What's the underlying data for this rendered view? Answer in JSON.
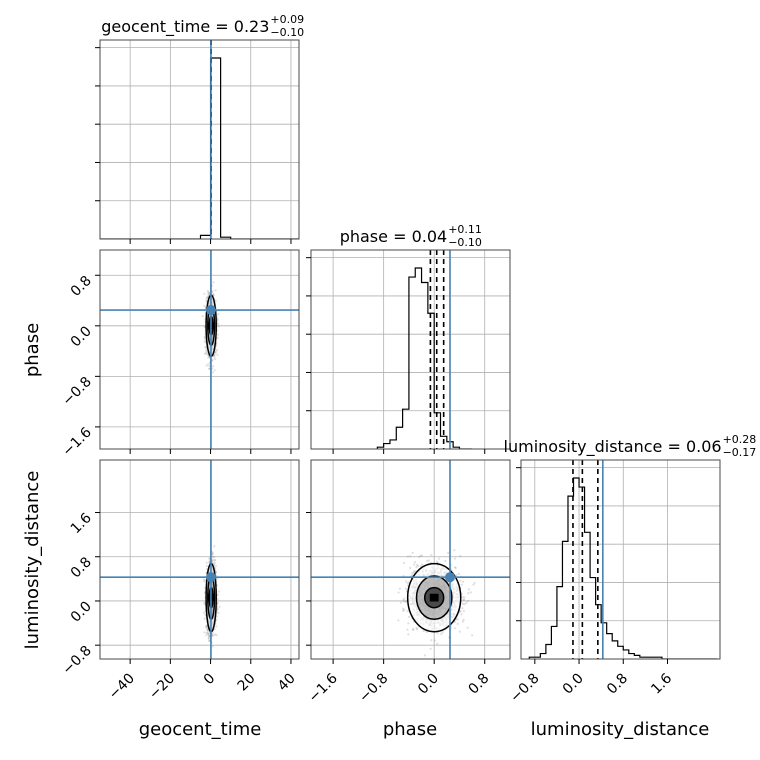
{
  "chart_data": {
    "type": "corner",
    "parameters": [
      "geocent_time",
      "phase",
      "luminosity_distance"
    ],
    "axis_labels": [
      "geocent_time",
      "phase",
      "luminosity_distance"
    ],
    "ranges": {
      "geocent_time": [
        -55,
        44
      ],
      "phase": [
        -1.95,
        1.2
      ],
      "luminosity_distance": [
        -1.05,
        2.55
      ]
    },
    "ticks": {
      "geocent_time": [
        -40,
        -20,
        0,
        20,
        40
      ],
      "phase": [
        -1.6,
        -0.8,
        0.0,
        0.8
      ],
      "luminosity_distance": [
        -0.8,
        0.0,
        0.8,
        1.6
      ]
    },
    "tick_labels": {
      "geocent_time": [
        "−40",
        "−20",
        "0",
        "20",
        "40"
      ],
      "phase": [
        "−1.6",
        "−0.8",
        "0.0",
        "0.8"
      ],
      "luminosity_distance": [
        "−0.8",
        "0.0",
        "0.8",
        "1.6"
      ]
    },
    "titles": [
      {
        "param": "geocent_time",
        "label": "geocent_time = 0.23",
        "plus": "+0.09",
        "minus": "−0.10"
      },
      {
        "param": "phase",
        "label": "phase = 0.04",
        "plus": "+0.11",
        "minus": "−0.10"
      },
      {
        "param": "luminosity_distance",
        "label": "luminosity_distance = 0.06",
        "plus": "+0.28",
        "minus": "−0.17"
      }
    ],
    "medians": {
      "geocent_time": 0.23,
      "phase": 0.04,
      "luminosity_distance": 0.06
    },
    "quantiles": {
      "geocent_time": [
        0.13,
        0.23,
        0.32
      ],
      "phase": [
        -0.06,
        0.04,
        0.15
      ],
      "luminosity_distance": [
        -0.11,
        0.06,
        0.34
      ]
    },
    "truths": {
      "geocent_time": 0.2,
      "phase": 0.25,
      "luminosity_distance": 0.43
    },
    "histograms": {
      "geocent_time": {
        "edges": [
          -55,
          -50,
          -45,
          -40,
          -35,
          -30,
          -25,
          -20,
          -15,
          -10,
          -5,
          0,
          5,
          10,
          15,
          20,
          25,
          30,
          35,
          40,
          44
        ],
        "counts": [
          0,
          0,
          0,
          0,
          0,
          0,
          0,
          0,
          0,
          0,
          0.02,
          1.0,
          0.01,
          0,
          0,
          0,
          0,
          0,
          0,
          0
        ]
      },
      "phase": {
        "edges": [
          -0.9,
          -0.8,
          -0.7,
          -0.6,
          -0.5,
          -0.4,
          -0.3,
          -0.2,
          -0.1,
          0.0,
          0.1,
          0.2,
          0.3,
          0.4,
          0.5,
          0.6
        ],
        "counts": [
          0.01,
          0.03,
          0.05,
          0.12,
          0.22,
          0.95,
          1.0,
          0.92,
          0.75,
          0.2,
          0.07,
          0.04,
          0.01,
          0,
          0
        ]
      },
      "luminosity_distance": {
        "edges": [
          -0.9,
          -0.8,
          -0.7,
          -0.6,
          -0.5,
          -0.4,
          -0.3,
          -0.2,
          -0.1,
          0.0,
          0.1,
          0.2,
          0.3,
          0.4,
          0.5,
          0.6,
          0.7,
          0.8,
          0.9,
          1.0,
          1.1,
          1.2,
          1.3,
          1.4,
          1.5,
          1.6,
          1.7,
          1.8,
          1.9,
          2.0,
          2.5
        ],
        "counts": [
          0.01,
          0.01,
          0.03,
          0.08,
          0.18,
          0.4,
          0.65,
          0.9,
          1.0,
          0.95,
          0.7,
          0.45,
          0.3,
          0.2,
          0.14,
          0.1,
          0.07,
          0.05,
          0.03,
          0.02,
          0.01,
          0.01,
          0.01,
          0.01,
          0,
          0,
          0,
          0,
          0,
          0
        ]
      }
    },
    "scatter_spread": {
      "geocent_time_phase": {
        "center": [
          0.3,
          0.0
        ],
        "sigma": [
          1.2,
          0.22
        ]
      },
      "geocent_time_luminosity_distance": {
        "center": [
          0.3,
          0.06
        ],
        "sigma": [
          1.2,
          0.28
        ]
      },
      "phase_luminosity_distance": {
        "center": [
          0.0,
          0.06
        ],
        "sigma": [
          0.2,
          0.28
        ]
      }
    },
    "grid": true,
    "truth_color": "#4682b4",
    "scatter_color": "#8c8c8c"
  }
}
